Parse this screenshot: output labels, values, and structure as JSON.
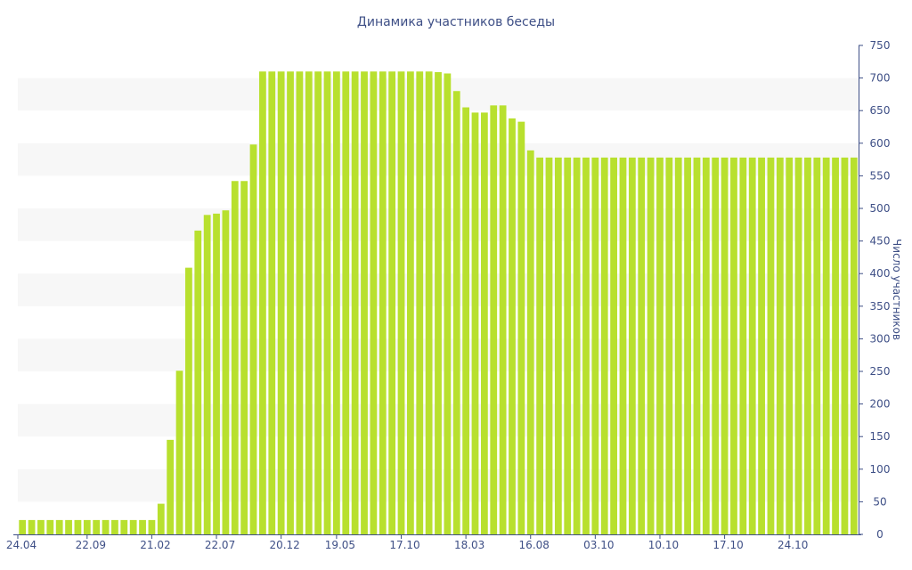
{
  "chart_data": {
    "type": "bar",
    "title": "Динамика участников беседы",
    "ylabel": "Число участников",
    "xlabel": "",
    "ylim": [
      0,
      750
    ],
    "yticks": [
      0,
      50,
      100,
      150,
      200,
      250,
      300,
      350,
      400,
      450,
      500,
      550,
      600,
      650,
      700,
      750
    ],
    "x_tick_labels": [
      "24.04",
      "22.09",
      "21.02",
      "22.07",
      "20.12",
      "19.05",
      "17.10",
      "18.03",
      "16.08",
      "03.10",
      "10.10",
      "17.10",
      "24.10"
    ],
    "x_tick_bar_index": [
      0,
      7,
      14,
      21,
      28,
      34,
      41,
      48,
      55,
      62,
      69,
      76,
      83
    ],
    "grid_bands": true,
    "colors": {
      "bar": "#b8e02e",
      "text": "#3e4f86",
      "axis": "#3e4f86",
      "band": "#f7f7f7"
    },
    "values": [
      22,
      22,
      22,
      22,
      22,
      22,
      22,
      22,
      22,
      22,
      22,
      22,
      22,
      22,
      22,
      47,
      145,
      251,
      409,
      466,
      490,
      492,
      497,
      542,
      542,
      598,
      710,
      710,
      710,
      710,
      710,
      710,
      710,
      710,
      710,
      710,
      710,
      710,
      710,
      710,
      710,
      710,
      710,
      710,
      710,
      709,
      707,
      680,
      655,
      647,
      647,
      658,
      658,
      638,
      633,
      589,
      578,
      578,
      578,
      578,
      578,
      578,
      578,
      578,
      578,
      578,
      578,
      578,
      578,
      578,
      578,
      578,
      578,
      578,
      578,
      578,
      578,
      578,
      578,
      578,
      578,
      578,
      578,
      578,
      578,
      578,
      578,
      578,
      578,
      578,
      578
    ]
  }
}
